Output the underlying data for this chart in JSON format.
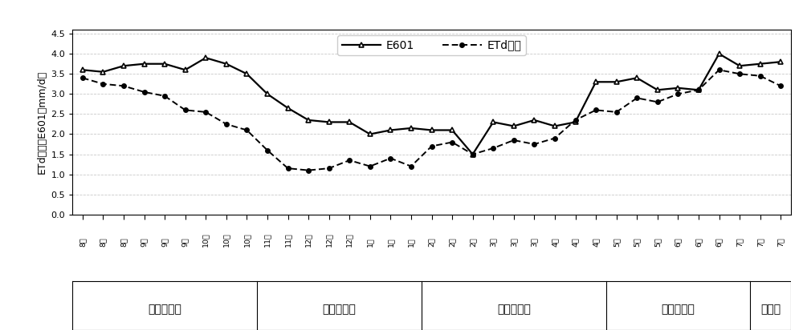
{
  "x_labels": [
    "8上",
    "8中",
    "8下",
    "9上",
    "9中",
    "9下",
    "10上",
    "10中",
    "10下",
    "11上",
    "11中",
    "12上",
    "12中",
    "12下",
    "1上",
    "1中",
    "1下",
    "2上",
    "2中",
    "2下",
    "3上",
    "3中",
    "3下",
    "4上",
    "4中",
    "4下",
    "5上",
    "5中",
    "5下",
    "6上",
    "6中",
    "6下",
    "7上",
    "7中",
    "7下"
  ],
  "E601": [
    3.6,
    3.55,
    3.7,
    3.75,
    3.75,
    3.6,
    3.9,
    3.75,
    3.5,
    3.0,
    2.65,
    2.35,
    2.3,
    2.3,
    2.0,
    2.1,
    2.15,
    2.1,
    2.1,
    1.5,
    2.3,
    2.2,
    2.35,
    2.2,
    2.3,
    3.3,
    3.3,
    3.4,
    3.1,
    3.15,
    3.1,
    4.0,
    3.7,
    3.75,
    3.8
  ],
  "ETd": [
    3.4,
    3.25,
    3.2,
    3.05,
    2.95,
    2.6,
    2.55,
    2.25,
    2.1,
    1.6,
    1.15,
    1.1,
    1.15,
    1.35,
    1.2,
    1.4,
    1.2,
    1.7,
    1.8,
    1.5,
    1.65,
    1.85,
    1.75,
    1.9,
    2.35,
    2.6,
    2.55,
    2.9,
    2.8,
    3.0,
    3.1,
    3.6,
    3.5,
    3.45,
    3.2
  ],
  "phases": [
    {
      "label": "秋梢抽发期",
      "start": 0,
      "end": 8
    },
    {
      "label": "花芒分化期",
      "start": 9,
      "end": 16
    },
    {
      "label": "开花挂果期",
      "start": 17,
      "end": 25
    },
    {
      "label": "果实膨大期",
      "start": 26,
      "end": 32
    },
    {
      "label": "成熟期",
      "start": 33,
      "end": 34
    }
  ],
  "phase_boundaries_after": [
    8,
    16,
    25,
    32
  ],
  "ylabel": "ETd芒果、E601（mm/d）",
  "yticks": [
    0.0,
    0.5,
    1.0,
    1.5,
    2.0,
    2.5,
    3.0,
    3.5,
    4.0,
    4.5
  ],
  "ylim": [
    0.0,
    4.6
  ],
  "legend_E601": "E601",
  "legend_ETd": "ETd芒果",
  "line_color": "#000000",
  "grid_color": "#bbbbbb",
  "label_fontsize": 9,
  "tick_fontsize": 8,
  "phase_fontsize": 10
}
